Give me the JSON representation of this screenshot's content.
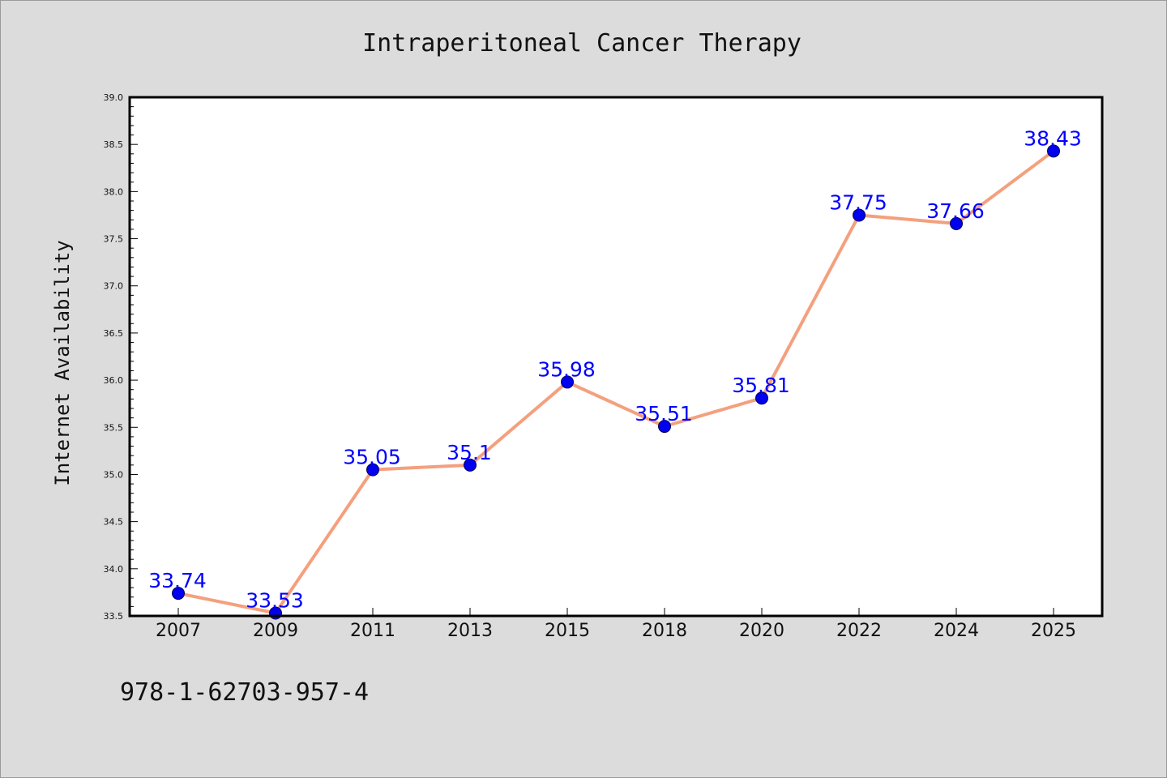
{
  "chart_data": {
    "type": "line",
    "title": "Intraperitoneal Cancer Therapy",
    "xlabel": "",
    "ylabel": "Internet Availability",
    "categories": [
      "2007",
      "2009",
      "2011",
      "2013",
      "2015",
      "2018",
      "2020",
      "2022",
      "2024",
      "2025"
    ],
    "series": [
      {
        "values": [
          33.74,
          33.53,
          35.05,
          35.1,
          35.98,
          35.51,
          35.81,
          37.75,
          37.66,
          38.43
        ],
        "data_labels": [
          "33.74",
          "33.53",
          "35.05",
          "35.1",
          "35.98",
          "35.51",
          "35.81",
          "37.75",
          "37.66",
          "38.43"
        ]
      }
    ],
    "ylim": [
      33.5,
      39.0
    ],
    "yticks": [
      "33.5",
      "34.0",
      "34.5",
      "35.0",
      "35.5",
      "36.0",
      "36.5",
      "37.0",
      "37.5",
      "38.0",
      "38.5",
      "39.0"
    ],
    "grid": false,
    "colors": {
      "line": "#f4a07e",
      "marker": "#0000ee",
      "label": "#0000ff",
      "plot_background": "#ffffff",
      "figure_background": "#dcdcdc"
    }
  },
  "footer": {
    "text": "978-1-62703-957-4"
  }
}
